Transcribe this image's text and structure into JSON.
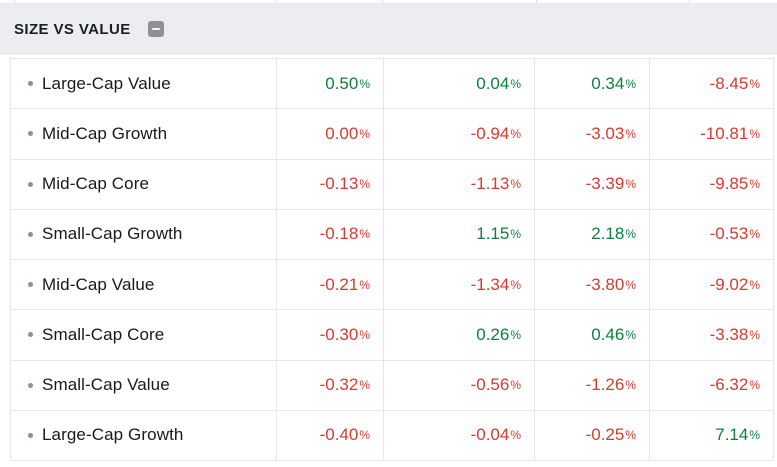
{
  "panel": {
    "title": "SIZE VS VALUE",
    "collapse_button": {
      "icon": "minus-icon",
      "symbol": "-"
    }
  },
  "table": {
    "unit_suffix": "%",
    "rows": [
      {
        "label": "Large-Cap Value",
        "values": [
          {
            "text": "0.50",
            "trend": "positive"
          },
          {
            "text": "0.04",
            "trend": "positive"
          },
          {
            "text": "0.34",
            "trend": "positive"
          },
          {
            "text": "-8.45",
            "trend": "negative"
          }
        ]
      },
      {
        "label": "Mid-Cap Growth",
        "values": [
          {
            "text": "0.00",
            "trend": "negative"
          },
          {
            "text": "-0.94",
            "trend": "negative"
          },
          {
            "text": "-3.03",
            "trend": "negative"
          },
          {
            "text": "-10.81",
            "trend": "negative"
          }
        ]
      },
      {
        "label": "Mid-Cap Core",
        "values": [
          {
            "text": "-0.13",
            "trend": "negative"
          },
          {
            "text": "-1.13",
            "trend": "negative"
          },
          {
            "text": "-3.39",
            "trend": "negative"
          },
          {
            "text": "-9.85",
            "trend": "negative"
          }
        ]
      },
      {
        "label": "Small-Cap Growth",
        "values": [
          {
            "text": "-0.18",
            "trend": "negative"
          },
          {
            "text": "1.15",
            "trend": "positive"
          },
          {
            "text": "2.18",
            "trend": "positive"
          },
          {
            "text": "-0.53",
            "trend": "negative"
          }
        ]
      },
      {
        "label": "Mid-Cap Value",
        "values": [
          {
            "text": "-0.21",
            "trend": "negative"
          },
          {
            "text": "-1.34",
            "trend": "negative"
          },
          {
            "text": "-3.80",
            "trend": "negative"
          },
          {
            "text": "-9.02",
            "trend": "negative"
          }
        ]
      },
      {
        "label": "Small-Cap Core",
        "values": [
          {
            "text": "-0.30",
            "trend": "negative"
          },
          {
            "text": "0.26",
            "trend": "positive"
          },
          {
            "text": "0.46",
            "trend": "positive"
          },
          {
            "text": "-3.38",
            "trend": "negative"
          }
        ]
      },
      {
        "label": "Small-Cap Value",
        "values": [
          {
            "text": "-0.32",
            "trend": "negative"
          },
          {
            "text": "-0.56",
            "trend": "negative"
          },
          {
            "text": "-1.26",
            "trend": "negative"
          },
          {
            "text": "-6.32",
            "trend": "negative"
          }
        ]
      },
      {
        "label": "Large-Cap Growth",
        "values": [
          {
            "text": "-0.40",
            "trend": "negative"
          },
          {
            "text": "-0.04",
            "trend": "negative"
          },
          {
            "text": "-0.25",
            "trend": "negative"
          },
          {
            "text": "7.14",
            "trend": "positive"
          }
        ]
      }
    ]
  },
  "colors": {
    "positive": "#0d803e",
    "negative": "#d63b30",
    "header_bg": "#ecedf1",
    "border": "#e6e7e9",
    "label_text": "#17191d",
    "bullet": "#8b9198",
    "collapse_button_bg": "#8f9092",
    "collapse_icon": "#f5f5f5"
  }
}
